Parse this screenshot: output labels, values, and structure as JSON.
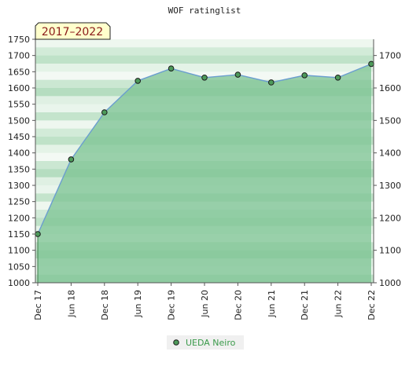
{
  "chart_data": {
    "type": "area",
    "title": "WOF ratinglist",
    "period_badge": "2017–2022",
    "categories": [
      "Dec 17",
      "Jun 18",
      "Dec 18",
      "Jun 19",
      "Dec 19",
      "Jun 20",
      "Dec 20",
      "Jun 21",
      "Dec 21",
      "Jun 22",
      "Dec 22"
    ],
    "series": [
      {
        "name": "UEDA Neiro",
        "values": [
          1150,
          1380,
          1525,
          1622,
          1660,
          1632,
          1641,
          1617,
          1639,
          1632,
          1674
        ]
      }
    ],
    "ylim": [
      1000,
      1750
    ],
    "left_ticks": [
      "1000",
      "1050",
      "1100",
      "1150",
      "1200",
      "1250",
      "1300",
      "1350",
      "1400",
      "1450",
      "1500",
      "1550",
      "1600",
      "1650",
      "1700",
      "1750"
    ],
    "right_ticks": [
      "1000",
      "1100",
      "1200",
      "1300",
      "1400",
      "1500",
      "1600",
      "1700"
    ],
    "legend_position": "bottom-center",
    "colors": {
      "area_fill": "#7fc495",
      "line": "#6b9ecf",
      "marker": "#4d9a5a",
      "legend_text": "#3a9a4a",
      "badge_bg": "#ffffcc",
      "badge_text": "#8b1a1a"
    }
  }
}
